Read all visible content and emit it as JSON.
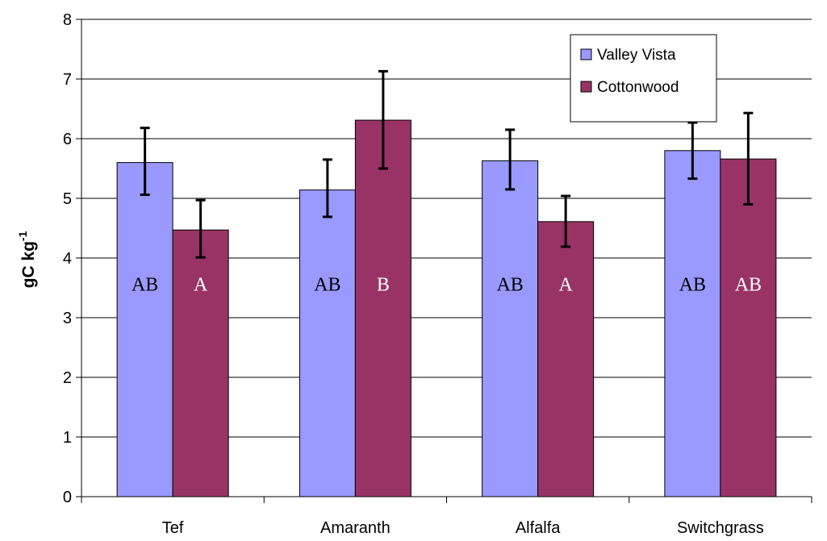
{
  "chart_data": {
    "type": "bar",
    "title": "",
    "xlabel": "",
    "ylabel": "gC kg",
    "ylabel_superscript": "-1",
    "ylim": [
      0,
      8
    ],
    "yticks": [
      "0",
      "1",
      "2",
      "3",
      "4",
      "5",
      "6",
      "7",
      "8"
    ],
    "grid": true,
    "legend_position": "top-right",
    "categories": [
      "Tef",
      "Amaranth",
      "Alfalfa",
      "Switchgrass"
    ],
    "series": [
      {
        "name": "Valley Vista",
        "color": "#9999ff",
        "values": [
          5.6,
          5.14,
          5.63,
          5.8
        ],
        "error_low": [
          5.06,
          4.69,
          5.15,
          5.33
        ],
        "error_high": [
          6.18,
          5.65,
          6.15,
          6.27
        ],
        "letters": [
          "AB",
          "AB",
          "AB",
          "AB"
        ],
        "letter_color": "#000000"
      },
      {
        "name": "Cottonwood",
        "color": "#993366",
        "values": [
          4.47,
          6.31,
          4.61,
          5.66
        ],
        "error_low": [
          4.01,
          5.5,
          4.19,
          4.9
        ],
        "error_high": [
          4.97,
          7.13,
          5.04,
          6.43
        ],
        "letters": [
          "A",
          "B",
          "A",
          "AB"
        ],
        "letter_color": "#ffffff"
      }
    ]
  }
}
